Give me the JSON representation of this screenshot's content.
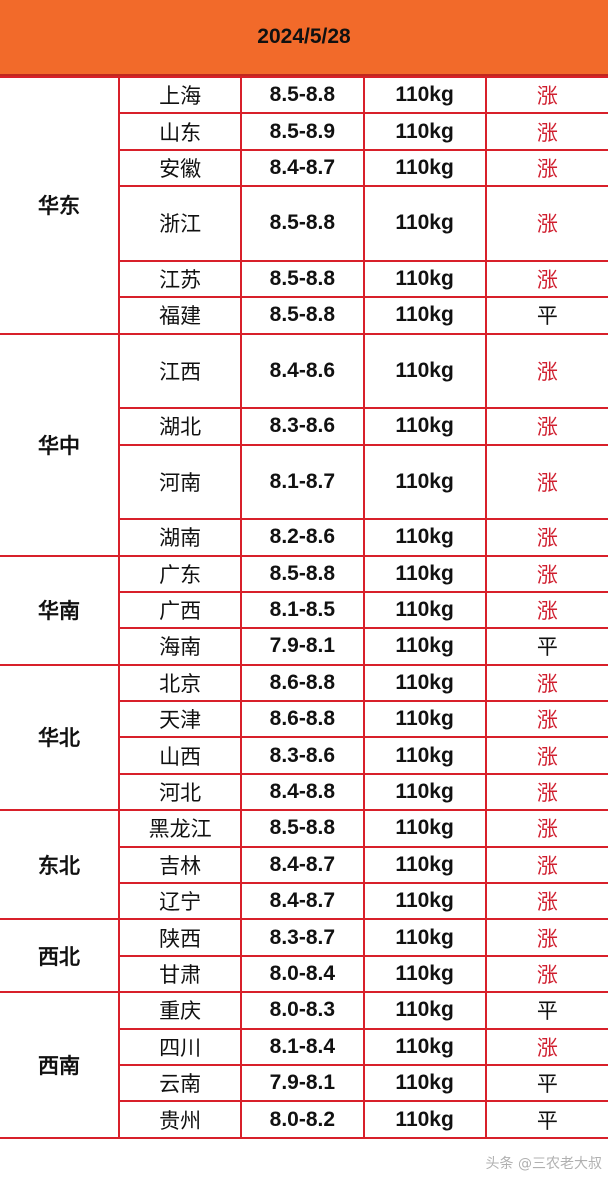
{
  "title": "2024/5/28",
  "colors": {
    "header_bg": "#f26a2a",
    "grid": "#d8202a",
    "up": "#d02030",
    "flat": "#111111"
  },
  "groups": [
    {
      "region": "华东",
      "rows": [
        {
          "province": "上海",
          "price": "8.5-8.8",
          "weight": "110kg",
          "trend": "涨"
        },
        {
          "province": "山东",
          "price": "8.5-8.9",
          "weight": "110kg",
          "trend": "涨"
        },
        {
          "province": "安徽",
          "price": "8.4-8.7",
          "weight": "110kg",
          "trend": "涨"
        },
        {
          "province": "浙江",
          "price": "8.5-8.8",
          "weight": "110kg",
          "trend": "涨",
          "tall": true
        },
        {
          "province": "江苏",
          "price": "8.5-8.8",
          "weight": "110kg",
          "trend": "涨"
        },
        {
          "province": "福建",
          "price": "8.5-8.8",
          "weight": "110kg",
          "trend": "平"
        }
      ]
    },
    {
      "region": "华中",
      "rows": [
        {
          "province": "江西",
          "price": "8.4-8.6",
          "weight": "110kg",
          "trend": "涨",
          "tall": true
        },
        {
          "province": "湖北",
          "price": "8.3-8.6",
          "weight": "110kg",
          "trend": "涨"
        },
        {
          "province": "河南",
          "price": "8.1-8.7",
          "weight": "110kg",
          "trend": "涨",
          "tall": true
        },
        {
          "province": "湖南",
          "price": "8.2-8.6",
          "weight": "110kg",
          "trend": "涨"
        }
      ]
    },
    {
      "region": "华南",
      "rows": [
        {
          "province": "广东",
          "price": "8.5-8.8",
          "weight": "110kg",
          "trend": "涨"
        },
        {
          "province": "广西",
          "price": "8.1-8.5",
          "weight": "110kg",
          "trend": "涨"
        },
        {
          "province": "海南",
          "price": "7.9-8.1",
          "weight": "110kg",
          "trend": "平"
        }
      ]
    },
    {
      "region": "华北",
      "rows": [
        {
          "province": "北京",
          "price": "8.6-8.8",
          "weight": "110kg",
          "trend": "涨"
        },
        {
          "province": "天津",
          "price": "8.6-8.8",
          "weight": "110kg",
          "trend": "涨"
        },
        {
          "province": "山西",
          "price": "8.3-8.6",
          "weight": "110kg",
          "trend": "涨"
        },
        {
          "province": "河北",
          "price": "8.4-8.8",
          "weight": "110kg",
          "trend": "涨"
        }
      ]
    },
    {
      "region": "东北",
      "rows": [
        {
          "province": "黑龙江",
          "price": "8.5-8.8",
          "weight": "110kg",
          "trend": "涨"
        },
        {
          "province": "吉林",
          "price": "8.4-8.7",
          "weight": "110kg",
          "trend": "涨"
        },
        {
          "province": "辽宁",
          "price": "8.4-8.7",
          "weight": "110kg",
          "trend": "涨"
        }
      ]
    },
    {
      "region": "西北",
      "rows": [
        {
          "province": "陕西",
          "price": "8.3-8.7",
          "weight": "110kg",
          "trend": "涨"
        },
        {
          "province": "甘肃",
          "price": "8.0-8.4",
          "weight": "110kg",
          "trend": "涨"
        }
      ]
    },
    {
      "region": "西南",
      "rows": [
        {
          "province": "重庆",
          "price": "8.0-8.3",
          "weight": "110kg",
          "trend": "平"
        },
        {
          "province": "四川",
          "price": "8.1-8.4",
          "weight": "110kg",
          "trend": "涨"
        },
        {
          "province": "云南",
          "price": "7.9-8.1",
          "weight": "110kg",
          "trend": "平"
        },
        {
          "province": "贵州",
          "price": "8.0-8.2",
          "weight": "110kg",
          "trend": "平"
        }
      ]
    }
  ],
  "watermark": "头条 @三农老大叔"
}
